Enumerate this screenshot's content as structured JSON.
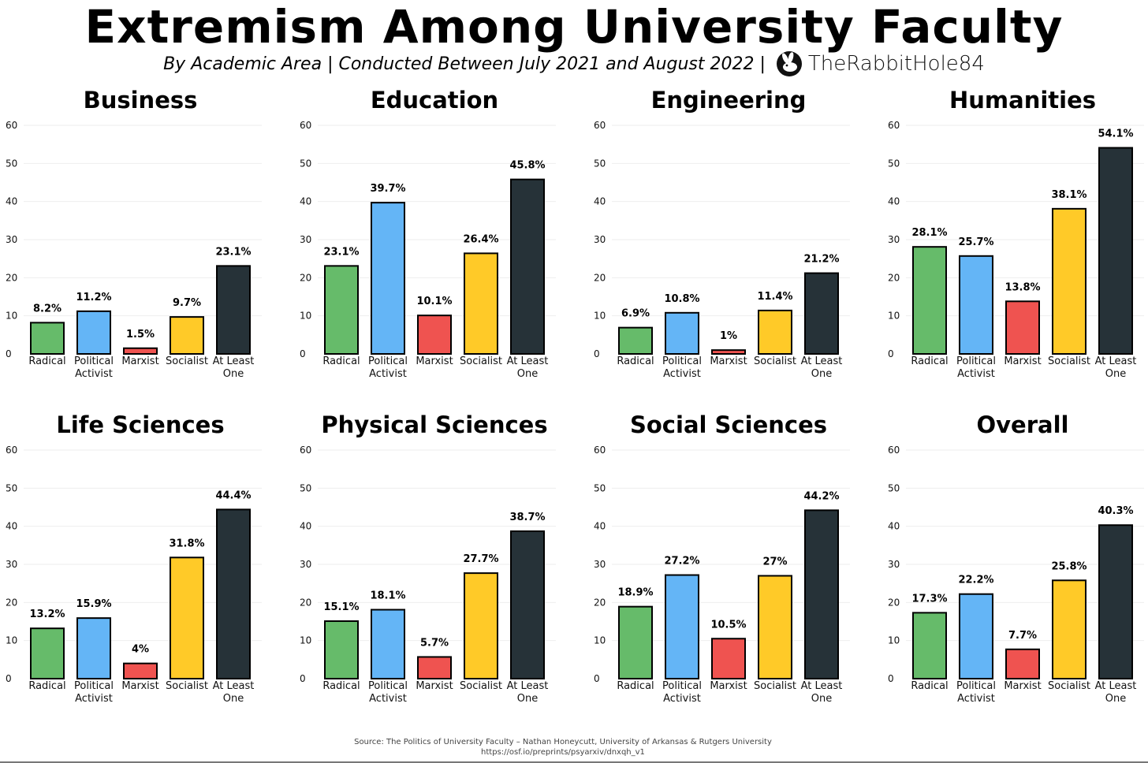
{
  "title": "Extremism Among University Faculty",
  "subtitle": "By Academic Area | Conducted Between July 2021 and August 2022 |",
  "brand": "TheRabbitHole84",
  "source_line1": "Source: The Politics of University Faculty – Nathan Honeycutt, University of Arkansas & Rutgers University",
  "source_line2": "https://osf.io/preprints/psyarxiv/dnxqh_v1",
  "colors": {
    "Radical": "#66bb6a",
    "Political Activist": "#64b5f6",
    "Marxist": "#ef5350",
    "Socialist": "#ffca28",
    "At Least One": "#263238"
  },
  "chart_data": [
    {
      "type": "bar",
      "title": "Business",
      "categories": [
        "Radical",
        "Political Activist",
        "Marxist",
        "Socialist",
        "At Least One"
      ],
      "values": [
        8.2,
        11.2,
        1.5,
        9.7,
        23.1
      ],
      "labels": [
        "8.2%",
        "11.2%",
        "1.5%",
        "9.7%",
        "23.1%"
      ],
      "yticks": [
        0,
        10,
        20,
        30,
        40,
        50,
        60
      ],
      "ylim": [
        0,
        60
      ],
      "grid": true
    },
    {
      "type": "bar",
      "title": "Education",
      "categories": [
        "Radical",
        "Political Activist",
        "Marxist",
        "Socialist",
        "At Least One"
      ],
      "values": [
        23.1,
        39.7,
        10.1,
        26.4,
        45.8
      ],
      "labels": [
        "23.1%",
        "39.7%",
        "10.1%",
        "26.4%",
        "45.8%"
      ],
      "yticks": [
        0,
        10,
        20,
        30,
        40,
        50,
        60
      ],
      "ylim": [
        0,
        60
      ],
      "grid": true
    },
    {
      "type": "bar",
      "title": "Engineering",
      "categories": [
        "Radical",
        "Political Activist",
        "Marxist",
        "Socialist",
        "At Least One"
      ],
      "values": [
        6.9,
        10.8,
        1,
        11.4,
        21.2
      ],
      "labels": [
        "6.9%",
        "10.8%",
        "1%",
        "11.4%",
        "21.2%"
      ],
      "yticks": [
        0,
        10,
        20,
        30,
        40,
        50,
        60
      ],
      "ylim": [
        0,
        60
      ],
      "grid": true
    },
    {
      "type": "bar",
      "title": "Humanities",
      "categories": [
        "Radical",
        "Political Activist",
        "Marxist",
        "Socialist",
        "At Least One"
      ],
      "values": [
        28.1,
        25.7,
        13.8,
        38.1,
        54.1
      ],
      "labels": [
        "28.1%",
        "25.7%",
        "13.8%",
        "38.1%",
        "54.1%"
      ],
      "yticks": [
        0,
        10,
        20,
        30,
        40,
        50,
        60
      ],
      "ylim": [
        0,
        60
      ],
      "grid": true
    },
    {
      "type": "bar",
      "title": "Life Sciences",
      "categories": [
        "Radical",
        "Political Activist",
        "Marxist",
        "Socialist",
        "At Least One"
      ],
      "values": [
        13.2,
        15.9,
        4,
        31.8,
        44.4
      ],
      "labels": [
        "13.2%",
        "15.9%",
        "4%",
        "31.8%",
        "44.4%"
      ],
      "yticks": [
        0,
        10,
        20,
        30,
        40,
        50,
        60
      ],
      "ylim": [
        0,
        60
      ],
      "grid": true
    },
    {
      "type": "bar",
      "title": "Physical Sciences",
      "categories": [
        "Radical",
        "Political Activist",
        "Marxist",
        "Socialist",
        "At Least One"
      ],
      "values": [
        15.1,
        18.1,
        5.7,
        27.7,
        38.7
      ],
      "labels": [
        "15.1%",
        "18.1%",
        "5.7%",
        "27.7%",
        "38.7%"
      ],
      "yticks": [
        0,
        10,
        20,
        30,
        40,
        50,
        60
      ],
      "ylim": [
        0,
        60
      ],
      "grid": true
    },
    {
      "type": "bar",
      "title": "Social Sciences",
      "categories": [
        "Radical",
        "Political Activist",
        "Marxist",
        "Socialist",
        "At Least One"
      ],
      "values": [
        18.9,
        27.2,
        10.5,
        27,
        44.2
      ],
      "labels": [
        "18.9%",
        "27.2%",
        "10.5%",
        "27%",
        "44.2%"
      ],
      "yticks": [
        0,
        10,
        20,
        30,
        40,
        50,
        60
      ],
      "ylim": [
        0,
        60
      ],
      "grid": true
    },
    {
      "type": "bar",
      "title": "Overall",
      "categories": [
        "Radical",
        "Political Activist",
        "Marxist",
        "Socialist",
        "At Least One"
      ],
      "values": [
        17.3,
        22.2,
        7.7,
        25.8,
        40.3
      ],
      "labels": [
        "17.3%",
        "22.2%",
        "7.7%",
        "25.8%",
        "40.3%"
      ],
      "yticks": [
        0,
        10,
        20,
        30,
        40,
        50,
        60
      ],
      "ylim": [
        0,
        60
      ],
      "grid": true
    }
  ]
}
